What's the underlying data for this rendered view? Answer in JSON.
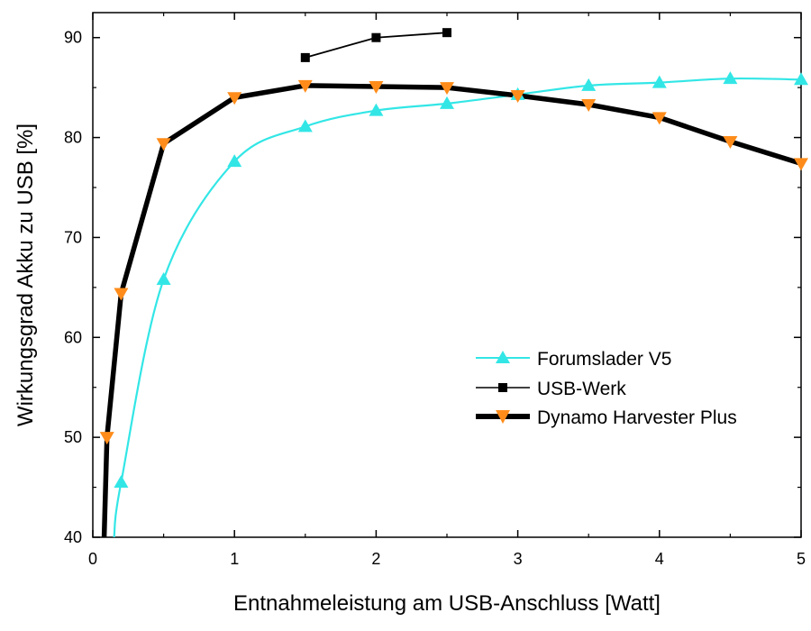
{
  "chart_data": {
    "type": "line",
    "xlabel": "Entnahmeleistung am USB-Anschluss [Watt]",
    "ylabel": "Wirkungsgrad Akku zu USB [%]",
    "xlim": [
      0,
      5
    ],
    "ylim": [
      40,
      92.5
    ],
    "x_ticks": [
      "0",
      "1",
      "2",
      "3",
      "4",
      "5"
    ],
    "y_ticks": [
      "40",
      "50",
      "60",
      "70",
      "80",
      "90"
    ],
    "grid": false,
    "legend_position": "bottom-right",
    "series": [
      {
        "name": "Forumslader V5",
        "color": "#33e6e6",
        "marker": "triangle-up",
        "line": "smooth",
        "x": [
          0.15,
          0.2,
          0.5,
          1.0,
          1.5,
          2.0,
          2.5,
          3.0,
          3.5,
          4.0,
          4.5,
          5.0
        ],
        "y": [
          40,
          45.5,
          65.8,
          77.6,
          81.1,
          82.7,
          83.4,
          84.3,
          85.2,
          85.5,
          85.9,
          85.8
        ]
      },
      {
        "name": "USB-Werk",
        "color": "#000000",
        "marker": "square",
        "line": "straight",
        "x": [
          1.5,
          2.0,
          2.5
        ],
        "y": [
          88.0,
          90.0,
          90.5
        ]
      },
      {
        "name": "Dynamo Harvester Plus",
        "color": "#000000",
        "marker_color": "#ff8c1a",
        "marker": "triangle-down",
        "line": "thick",
        "x": [
          0.08,
          0.1,
          0.2,
          0.5,
          1.0,
          1.5,
          2.0,
          2.5,
          3.0,
          3.5,
          4.0,
          4.5,
          5.0
        ],
        "y": [
          40,
          50.0,
          64.4,
          79.4,
          84.0,
          85.2,
          85.1,
          85.0,
          84.2,
          83.3,
          82.0,
          79.6,
          77.4
        ]
      }
    ]
  }
}
